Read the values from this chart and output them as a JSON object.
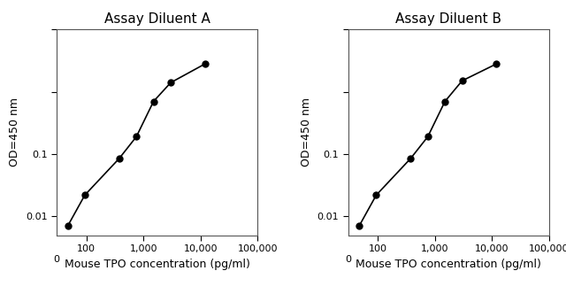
{
  "panel_A": {
    "title": "Assay Diluent A",
    "x_data": [
      46.875,
      93.75,
      375,
      750,
      1500,
      3000,
      12000
    ],
    "y_data": [
      0.007,
      0.022,
      0.085,
      0.19,
      0.7,
      1.4,
      2.8
    ]
  },
  "panel_B": {
    "title": "Assay Diluent B",
    "x_data": [
      46.875,
      93.75,
      375,
      750,
      1500,
      3000,
      12000
    ],
    "y_data": [
      0.007,
      0.022,
      0.085,
      0.19,
      0.7,
      1.5,
      2.8
    ]
  },
  "xlabel": "Mouse TPO concentration (pg/ml)",
  "ylabel": "OD=450 nm",
  "xlim": [
    30,
    100000
  ],
  "ylim": [
    0.005,
    10
  ],
  "line_color": "#000000",
  "marker_color": "#000000",
  "marker_size": 5,
  "line_width": 1.2,
  "background_color": "#ffffff",
  "title_fontsize": 11,
  "label_fontsize": 9,
  "tick_fontsize": 8
}
